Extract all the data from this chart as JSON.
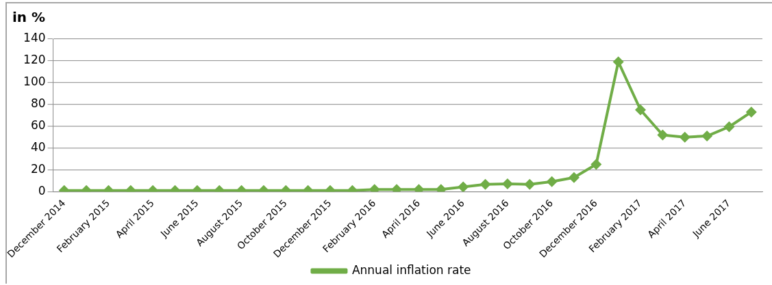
{
  "chart_data": {
    "type": "line",
    "ylabel": "in %",
    "categories": [
      "December 2014",
      null,
      "February 2015",
      null,
      "April 2015",
      null,
      "June 2015",
      null,
      "August 2015",
      null,
      "October 2015",
      null,
      "December 2015",
      null,
      "February 2016",
      null,
      "April 2016",
      null,
      "June 2016",
      null,
      "August 2016",
      null,
      "October 2016",
      null,
      "December 2016",
      null,
      "February 2017",
      null,
      "April 2017",
      null,
      "June 2017",
      null
    ],
    "series": [
      {
        "name": "Annual inflation rate",
        "color": "#70ad47",
        "values": [
          1,
          1,
          1,
          1,
          1,
          1,
          1,
          1,
          1,
          1,
          1,
          1,
          1,
          1,
          2,
          2,
          2,
          2,
          4.3,
          6.7,
          7.2,
          6.7,
          9.2,
          13,
          25,
          119,
          75,
          52,
          50,
          51,
          59.5,
          73
        ]
      }
    ],
    "ylim": [
      0,
      140
    ],
    "yticks": [
      0,
      20,
      40,
      60,
      80,
      100,
      120,
      140
    ],
    "grid": "y",
    "legend": "bottom",
    "marker": "diamond",
    "line_style": "solid"
  }
}
